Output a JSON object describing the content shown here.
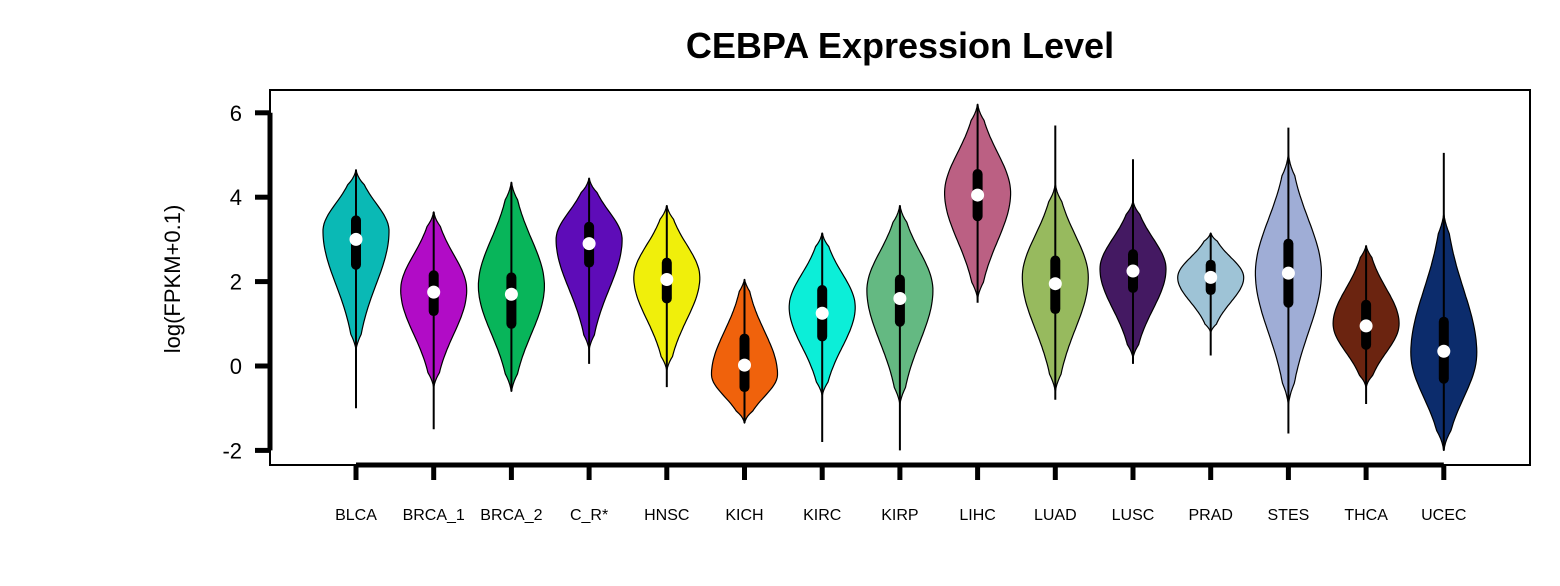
{
  "chart_data": {
    "type": "violin",
    "title": "CEBPA Expression Level",
    "ylabel": "log(FPKM+0.1)",
    "xlabel": "",
    "ylim": [
      -2,
      6
    ],
    "yticks": [
      -2,
      0,
      2,
      4,
      6
    ],
    "grid": false,
    "categories": [
      "BLCA",
      "BRCA_1",
      "BRCA_2",
      "C_R*",
      "HNSC",
      "KICH",
      "KIRC",
      "KIRP",
      "LIHC",
      "LUAD",
      "LUSC",
      "PRAD",
      "STES",
      "THCA",
      "UCEC"
    ],
    "colors": [
      "#0ab9b5",
      "#b10cc6",
      "#08b55a",
      "#5e0cb8",
      "#f0ef0b",
      "#f0620c",
      "#0ceed8",
      "#64b982",
      "#bb6083",
      "#97ba5e",
      "#441962",
      "#9ec3d6",
      "#9fadd6",
      "#6b2410",
      "#0c2c6c"
    ],
    "series": [
      {
        "label": "BLCA",
        "min": -1.0,
        "q1": 2.4,
        "median": 3.0,
        "q3": 3.45,
        "max": 4.65,
        "violin_low": 0.4,
        "violin_high": 4.65,
        "mode": 3.2
      },
      {
        "label": "BRCA_1",
        "min": -1.5,
        "q1": 1.3,
        "median": 1.75,
        "q3": 2.15,
        "max": 3.65,
        "violin_low": -0.5,
        "violin_high": 3.65,
        "mode": 1.8
      },
      {
        "label": "BRCA_2",
        "min": -0.6,
        "q1": 1.0,
        "median": 1.7,
        "q3": 2.1,
        "max": 4.35,
        "violin_low": -0.6,
        "violin_high": 4.35,
        "mode": 1.9
      },
      {
        "label": "C_R*",
        "min": 0.05,
        "q1": 2.45,
        "median": 2.9,
        "q3": 3.3,
        "max": 4.45,
        "violin_low": 0.4,
        "violin_high": 4.45,
        "mode": 3.0
      },
      {
        "label": "HNSC",
        "min": -0.5,
        "q1": 1.6,
        "median": 2.05,
        "q3": 2.45,
        "max": 3.8,
        "violin_low": -0.1,
        "violin_high": 3.8,
        "mode": 2.1
      },
      {
        "label": "KICH",
        "min": -1.35,
        "q1": -0.5,
        "median": 0.02,
        "q3": 0.65,
        "max": 2.05,
        "violin_low": -1.35,
        "violin_high": 2.05,
        "mode": -0.2
      },
      {
        "label": "KIRC",
        "min": -1.8,
        "q1": 0.7,
        "median": 1.25,
        "q3": 1.8,
        "max": 3.15,
        "violin_low": -0.7,
        "violin_high": 3.15,
        "mode": 1.4
      },
      {
        "label": "KIRP",
        "min": -2.0,
        "q1": 1.05,
        "median": 1.6,
        "q3": 2.05,
        "max": 3.8,
        "violin_low": -0.9,
        "violin_high": 3.8,
        "mode": 1.8
      },
      {
        "label": "LIHC",
        "min": 1.5,
        "q1": 3.55,
        "median": 4.05,
        "q3": 4.55,
        "max": 6.2,
        "violin_low": 1.6,
        "violin_high": 6.2,
        "mode": 4.1
      },
      {
        "label": "LUAD",
        "min": -0.8,
        "q1": 1.35,
        "median": 1.95,
        "q3": 2.5,
        "max": 5.7,
        "violin_low": -0.6,
        "violin_high": 4.3,
        "mode": 2.1
      },
      {
        "label": "LUSC",
        "min": 0.05,
        "q1": 1.85,
        "median": 2.25,
        "q3": 2.65,
        "max": 4.9,
        "violin_low": 0.2,
        "violin_high": 3.9,
        "mode": 2.3
      },
      {
        "label": "PRAD",
        "min": 0.25,
        "q1": 1.8,
        "median": 2.1,
        "q3": 2.4,
        "max": 3.15,
        "violin_low": 0.8,
        "violin_high": 3.15,
        "mode": 2.1
      },
      {
        "label": "STES",
        "min": -1.6,
        "q1": 1.5,
        "median": 2.2,
        "q3": 2.9,
        "max": 5.65,
        "violin_low": -0.9,
        "violin_high": 5.0,
        "mode": 2.2
      },
      {
        "label": "THCA",
        "min": -0.9,
        "q1": 0.5,
        "median": 0.95,
        "q3": 1.45,
        "max": 2.85,
        "violin_low": -0.5,
        "violin_high": 2.85,
        "mode": 1.0
      },
      {
        "label": "UCEC",
        "min": -2.0,
        "q1": -0.3,
        "median": 0.35,
        "q3": 1.05,
        "max": 5.05,
        "violin_low": -2.0,
        "violin_high": 3.6,
        "mode": 0.3
      }
    ]
  }
}
